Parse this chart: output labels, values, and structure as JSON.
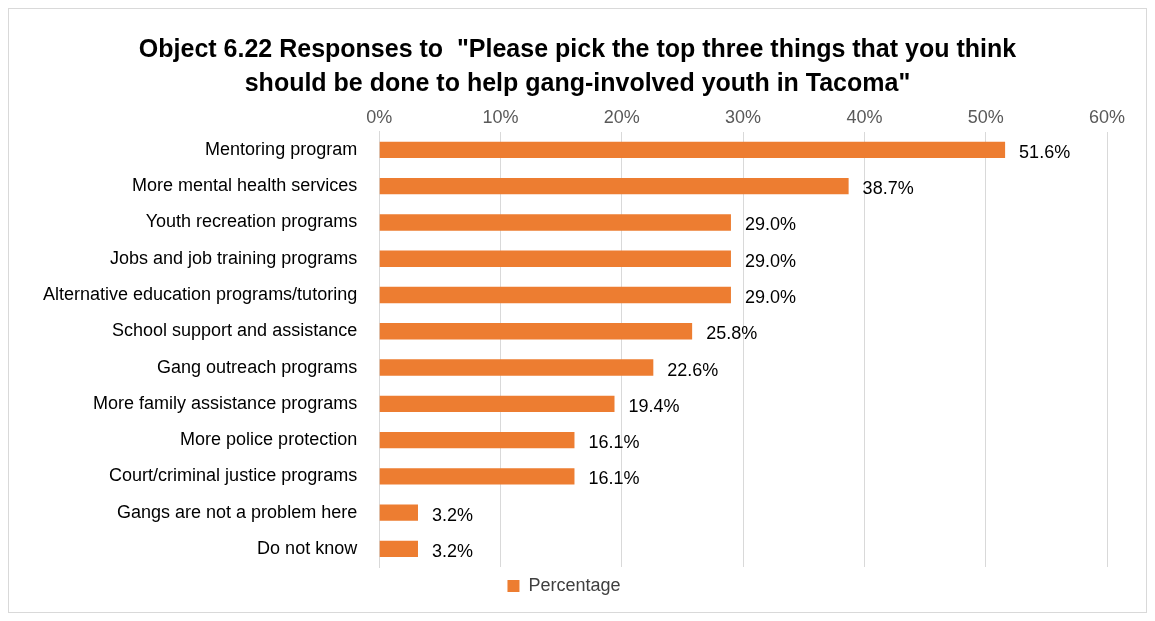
{
  "chart_data": {
    "type": "bar",
    "orientation": "horizontal",
    "title": "Object 6.22 Responses to  \"Please pick the top three things that you think should be done to help gang-involved youth in Tacoma\"",
    "categories": [
      "Mentoring program",
      "More mental health services",
      "Youth recreation programs",
      "Jobs and job training programs",
      "Alternative education programs/tutoring",
      "School support and assistance",
      "Gang outreach programs",
      "More family assistance programs",
      "More police protection",
      "Court/criminal justice programs",
      "Gangs are not a problem here",
      "Do not know"
    ],
    "series": [
      {
        "name": "Percentage",
        "color": "#ed7d31",
        "values": [
          51.6,
          38.7,
          29.0,
          29.0,
          29.0,
          25.8,
          22.6,
          19.4,
          16.1,
          16.1,
          3.2,
          3.2
        ],
        "value_labels": [
          "51.6%",
          "38.7%",
          "29.0%",
          "29.0%",
          "29.0%",
          "25.8%",
          "22.6%",
          "19.4%",
          "16.1%",
          "16.1%",
          "3.2%",
          "3.2%"
        ]
      }
    ],
    "xlim": [
      0,
      60
    ],
    "xticks": [
      {
        "value": 0,
        "label": "0%"
      },
      {
        "value": 10,
        "label": "10%"
      },
      {
        "value": 20,
        "label": "20%"
      },
      {
        "value": 30,
        "label": "30%"
      },
      {
        "value": 40,
        "label": "40%"
      },
      {
        "value": 50,
        "label": "50%"
      },
      {
        "value": 60,
        "label": "60%"
      }
    ],
    "grid": "x",
    "legend": "bottom"
  }
}
